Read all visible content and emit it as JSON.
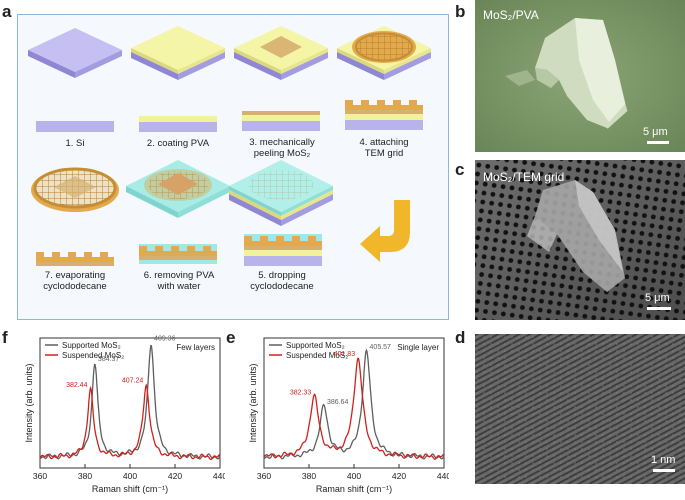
{
  "panels": {
    "a": "a",
    "b": "b",
    "c": "c",
    "d": "d",
    "e": "e",
    "f": "f"
  },
  "steps": [
    {
      "num": "1.",
      "text": "Si"
    },
    {
      "num": "2.",
      "text": "coating PVA"
    },
    {
      "num": "3.",
      "text": "mechanically peeling MoS₂"
    },
    {
      "num": "4.",
      "text": "attaching TEM grid"
    },
    {
      "num": "5.",
      "text": "dropping cyclododecane"
    },
    {
      "num": "6.",
      "text": "removing PVA with water"
    },
    {
      "num": "7.",
      "text": "evaporating cyclododecane"
    }
  ],
  "step_text": {
    "s1": "1. Si",
    "s2": "2. coating PVA",
    "s3a": "3. mechanically",
    "s3b": "peeling MoS₂",
    "s4a": "4.  attaching",
    "s4b": "TEM grid",
    "s5a": "5.  dropping",
    "s5b": "cyclododecane",
    "s6a": "6.  removing PVA",
    "s6b": "with water",
    "s7a": "7. evaporating",
    "s7b": "cyclododecane"
  },
  "colors": {
    "si": "#b9b3ec",
    "pva": "#f1f29c",
    "mos2": "#d6b070",
    "grid": "#e2a94d",
    "cyclododecane": "#9ee9e3",
    "arrow": "#f1b72b",
    "supported": "#5f5f5f",
    "suspended": "#d0211c"
  },
  "micrographs": {
    "b": {
      "label": "MoS₂/PVA",
      "scale": "5 μm"
    },
    "c": {
      "label": "MoS₂/TEM grid",
      "scale": "5 μm"
    },
    "d": {
      "scale": "1 nm"
    }
  },
  "chart_data": [
    {
      "type": "line",
      "panel": "f",
      "title": "Few layers",
      "xlabel": "Raman shift (cm⁻¹)",
      "ylabel": "Intensity (arb. units)",
      "xlim": [
        360,
        440
      ],
      "xticks": [
        360,
        380,
        400,
        420,
        440
      ],
      "legend_position": "top-left",
      "series": [
        {
          "name": "Supported MoS₂",
          "color": "#5f5f5f",
          "peaks": [
            {
              "x": 384.37,
              "height": 0.78,
              "width": 1.6
            },
            {
              "x": 409.36,
              "height": 0.95,
              "width": 1.8
            }
          ]
        },
        {
          "name": "Suspended MoS₂",
          "color": "#d0211c",
          "peaks": [
            {
              "x": 382.44,
              "height": 0.56,
              "width": 1.6
            },
            {
              "x": 407.24,
              "height": 0.6,
              "width": 1.8
            }
          ]
        }
      ],
      "annotations": [
        {
          "text": "384.37",
          "x": 384.37,
          "series": 0
        },
        {
          "text": "409.36",
          "x": 409.36,
          "series": 0
        },
        {
          "text": "382.44",
          "x": 382.44,
          "series": 1
        },
        {
          "text": "407.24",
          "x": 407.24,
          "series": 1
        }
      ]
    },
    {
      "type": "line",
      "panel": "e",
      "title": "Single layer",
      "xlabel": "Raman shift (cm⁻¹)",
      "ylabel": "Intensity (arb. units)",
      "xlim": [
        360,
        440
      ],
      "xticks": [
        360,
        380,
        400,
        420,
        440
      ],
      "legend_position": "top-left",
      "series": [
        {
          "name": "Supported MoS₂",
          "color": "#5f5f5f",
          "peaks": [
            {
              "x": 386.64,
              "height": 0.42,
              "width": 2.2
            },
            {
              "x": 405.57,
              "height": 0.88,
              "width": 2.2
            }
          ]
        },
        {
          "name": "Suspended MoS₂",
          "color": "#d0211c",
          "peaks": [
            {
              "x": 382.33,
              "height": 0.5,
              "width": 2.4
            },
            {
              "x": 401.83,
              "height": 0.82,
              "width": 2.4
            }
          ]
        }
      ],
      "annotations": [
        {
          "text": "386.64",
          "x": 386.64,
          "series": 0
        },
        {
          "text": "405.57",
          "x": 405.57,
          "series": 0
        },
        {
          "text": "382.33",
          "x": 382.33,
          "series": 1
        },
        {
          "text": "401.83",
          "x": 401.83,
          "series": 1
        }
      ]
    }
  ]
}
